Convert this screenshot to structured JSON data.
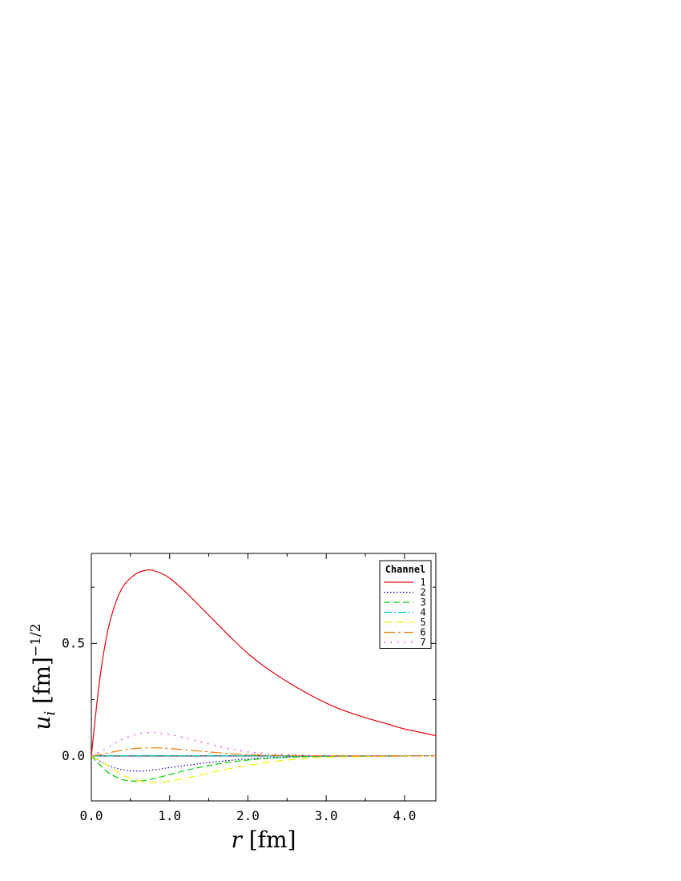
{
  "chart_data": {
    "type": "line",
    "xlabel": "r [fm]",
    "ylabel": "u_i [fm]^-1/2",
    "xlim": [
      0.0,
      4.4
    ],
    "ylim": [
      -0.2,
      0.9
    ],
    "x_ticks": [
      "0.0",
      "1.0",
      "2.0",
      "3.0",
      "4.0"
    ],
    "y_ticks": [
      "0.0",
      "0.5"
    ],
    "grid": false,
    "legend": {
      "title": "Channel",
      "position": "top-right"
    },
    "series": [
      {
        "name": "1",
        "color": "#e8000b",
        "dash": "solid",
        "x": [
          0,
          0.1,
          0.2,
          0.3,
          0.4,
          0.5,
          0.6,
          0.7,
          0.77,
          0.9,
          1.0,
          1.2,
          1.4,
          1.6,
          1.8,
          2.0,
          2.2,
          2.5,
          2.8,
          3.0,
          3.2,
          3.5,
          3.8,
          4.0,
          4.2,
          4.4
        ],
        "y": [
          0,
          0.32,
          0.54,
          0.67,
          0.75,
          0.79,
          0.815,
          0.825,
          0.826,
          0.81,
          0.79,
          0.73,
          0.66,
          0.59,
          0.52,
          0.455,
          0.4,
          0.33,
          0.27,
          0.235,
          0.205,
          0.17,
          0.14,
          0.12,
          0.105,
          0.09
        ]
      },
      {
        "name": "2",
        "color": "#0000c8",
        "dash": "dotted",
        "x": [
          0,
          0.2,
          0.4,
          0.6,
          0.8,
          1.0,
          1.3,
          1.6,
          2.0,
          2.5,
          3.0,
          3.5,
          4.4
        ],
        "y": [
          0,
          -0.04,
          -0.062,
          -0.068,
          -0.062,
          -0.052,
          -0.038,
          -0.026,
          -0.013,
          -0.005,
          -0.002,
          -0.001,
          0
        ]
      },
      {
        "name": "3",
        "color": "#00d000",
        "dash": "dashed",
        "x": [
          0,
          0.2,
          0.4,
          0.55,
          0.7,
          0.9,
          1.2,
          1.5,
          1.8,
          2.2,
          2.6,
          3.0,
          4.4
        ],
        "y": [
          0,
          -0.07,
          -0.105,
          -0.112,
          -0.108,
          -0.092,
          -0.065,
          -0.043,
          -0.026,
          -0.012,
          -0.005,
          -0.002,
          0
        ]
      },
      {
        "name": "4",
        "color": "#00c8c8",
        "dash": "dash-dot",
        "x": [
          0,
          0.5,
          1.0,
          2.0,
          3.0,
          4.4
        ],
        "y": [
          0,
          0.001,
          0.001,
          0.0005,
          0,
          0
        ]
      },
      {
        "name": "5",
        "color": "#f0f000",
        "dash": "long-dash",
        "x": [
          0,
          0.2,
          0.4,
          0.6,
          0.8,
          1.0,
          1.3,
          1.6,
          2.0,
          2.4,
          2.8,
          3.2,
          4.4
        ],
        "y": [
          0,
          -0.04,
          -0.085,
          -0.11,
          -0.118,
          -0.112,
          -0.092,
          -0.068,
          -0.042,
          -0.022,
          -0.01,
          -0.004,
          0
        ]
      },
      {
        "name": "6",
        "color": "#f08000",
        "dash": "long-dash-dot",
        "x": [
          0,
          0.2,
          0.4,
          0.6,
          0.75,
          0.9,
          1.1,
          1.4,
          1.7,
          2.0,
          2.4,
          3.0,
          4.4
        ],
        "y": [
          0,
          0.012,
          0.026,
          0.034,
          0.036,
          0.035,
          0.03,
          0.021,
          0.012,
          0.006,
          0.002,
          0,
          0
        ]
      },
      {
        "name": "7",
        "color": "#ff00ff",
        "dash": "sparse-dotted",
        "x": [
          0,
          0.2,
          0.4,
          0.6,
          0.75,
          0.9,
          1.1,
          1.4,
          1.7,
          2.0,
          2.4,
          3.0,
          4.4
        ],
        "y": [
          0,
          0.035,
          0.075,
          0.098,
          0.104,
          0.1,
          0.088,
          0.062,
          0.036,
          0.018,
          0.007,
          0.001,
          0
        ]
      }
    ]
  }
}
